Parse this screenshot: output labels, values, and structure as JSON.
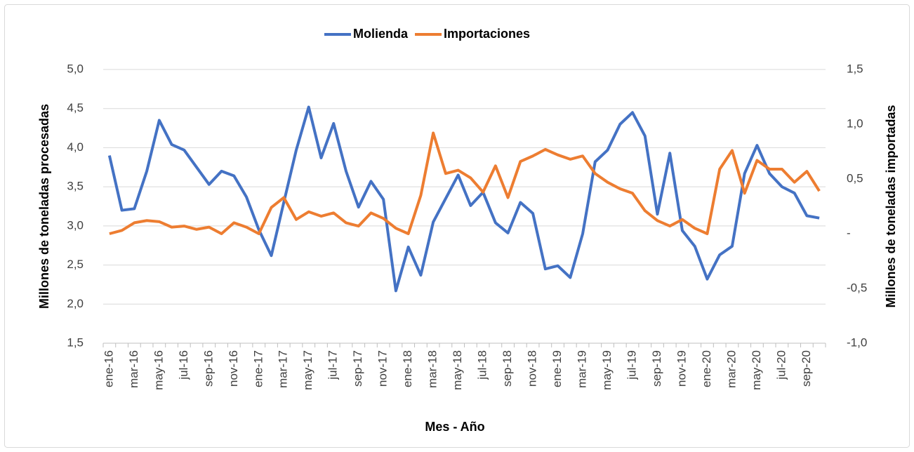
{
  "chart_data": {
    "type": "line",
    "legend": "top",
    "grid": true,
    "x_label": "Mes - Año",
    "y_label": "Millones de toneladas procesadas",
    "y2_label": "Millones de toneladas importadas",
    "categories": [
      "ene-16",
      null,
      "mar-16",
      null,
      "may-16",
      null,
      "jul-16",
      null,
      "sep-16",
      null,
      "nov-16",
      null,
      "ene-17",
      null,
      "mar-17",
      null,
      "may-17",
      null,
      "jul-17",
      null,
      "sep-17",
      null,
      "nov-17",
      null,
      "ene-18",
      null,
      "mar-18",
      null,
      "may-18",
      null,
      "jul-18",
      null,
      "sep-18",
      null,
      "nov-18",
      null,
      "ene-19",
      null,
      "mar-19",
      null,
      "may-19",
      null,
      "jul-19",
      null,
      "sep-19",
      null,
      "nov-19",
      null,
      "ene-20",
      null,
      "mar-20",
      null,
      "may-20",
      null,
      "jul-20",
      null,
      "sep-20",
      null
    ],
    "ylim": [
      1.5,
      5.0
    ],
    "yticks": [
      {
        "value": 1.5,
        "label": "1,5"
      },
      {
        "value": 2.0,
        "label": "2,0"
      },
      {
        "value": 2.5,
        "label": "2,5"
      },
      {
        "value": 3.0,
        "label": "3,0"
      },
      {
        "value": 3.5,
        "label": "3,5"
      },
      {
        "value": 4.0,
        "label": "4,0"
      },
      {
        "value": 4.5,
        "label": "4,5"
      },
      {
        "value": 5.0,
        "label": "5,0"
      }
    ],
    "y2lim": [
      -1.0,
      1.5
    ],
    "y2ticks": [
      {
        "value": -1.0,
        "label": "-1,0"
      },
      {
        "value": -0.5,
        "label": "-0,5"
      },
      {
        "value": 0,
        "label": "-"
      },
      {
        "value": 0.5,
        "label": "0,5"
      },
      {
        "value": 1.0,
        "label": "1,0"
      },
      {
        "value": 1.5,
        "label": "1,5"
      }
    ],
    "series": [
      {
        "name": "Molienda",
        "color": "#4472c4",
        "axis": "y",
        "values": [
          3.9,
          3.2,
          3.22,
          3.7,
          4.35,
          4.04,
          3.97,
          3.75,
          3.53,
          3.7,
          3.64,
          3.37,
          2.95,
          2.62,
          3.3,
          3.97,
          4.52,
          3.87,
          4.31,
          3.7,
          3.24,
          3.57,
          3.34,
          2.17,
          2.73,
          2.37,
          3.05,
          3.35,
          3.65,
          3.26,
          3.43,
          3.04,
          2.91,
          3.3,
          3.16,
          2.45,
          2.49,
          2.34,
          2.9,
          3.82,
          3.97,
          4.3,
          4.45,
          4.15,
          3.15,
          3.93,
          2.94,
          2.74,
          2.32,
          2.63,
          2.74,
          3.67,
          4.03,
          3.67,
          3.5,
          3.42,
          3.13,
          3.1
        ]
      },
      {
        "name": "Importaciones",
        "color": "#ed7d31",
        "axis": "y2",
        "values": [
          0.0,
          0.03,
          0.1,
          0.12,
          0.11,
          0.06,
          0.07,
          0.04,
          0.06,
          0.0,
          0.1,
          0.06,
          0.0,
          0.24,
          0.33,
          0.13,
          0.2,
          0.16,
          0.19,
          0.1,
          0.07,
          0.19,
          0.14,
          0.05,
          0.0,
          0.35,
          0.92,
          0.55,
          0.58,
          0.51,
          0.38,
          0.62,
          0.33,
          0.66,
          0.71,
          0.77,
          0.72,
          0.68,
          0.71,
          0.55,
          0.47,
          0.41,
          0.37,
          0.21,
          0.12,
          0.07,
          0.13,
          0.05,
          0.0,
          0.59,
          0.76,
          0.37,
          0.67,
          0.59,
          0.59,
          0.47,
          0.57,
          0.39
        ]
      }
    ]
  }
}
